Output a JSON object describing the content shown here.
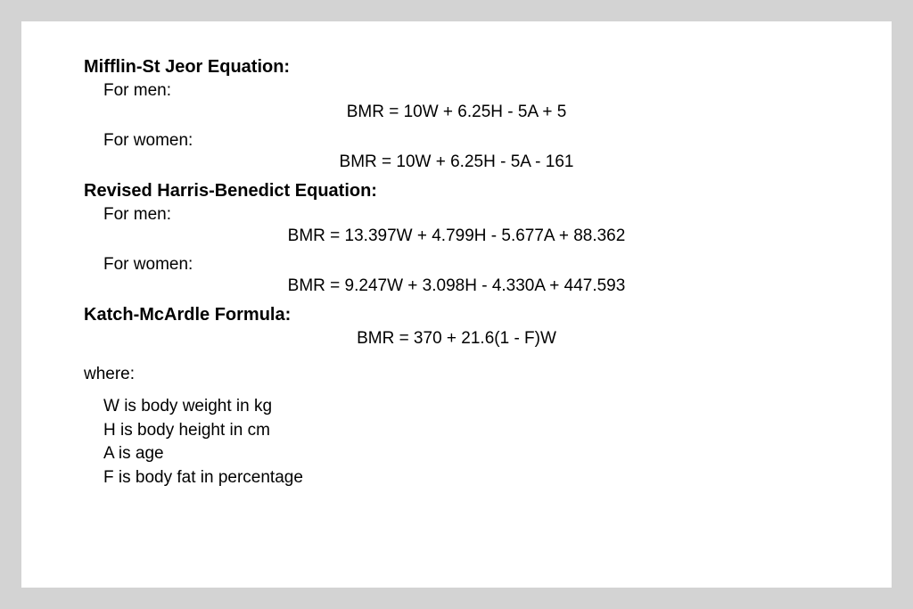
{
  "colors": {
    "page_background": "#d3d3d3",
    "content_background": "#ffffff",
    "text_color": "#000000"
  },
  "typography": {
    "font_family": "Arial, Helvetica, sans-serif",
    "title_fontsize": 20,
    "title_weight": "bold",
    "body_fontsize": 19
  },
  "sections": [
    {
      "title": "Mifflin-St Jeor Equation:",
      "entries": [
        {
          "label": "For men:",
          "formula": "BMR = 10W + 6.25H - 5A + 5"
        },
        {
          "label": "For women:",
          "formula": "BMR = 10W + 6.25H - 5A - 161"
        }
      ]
    },
    {
      "title": "Revised Harris-Benedict Equation:",
      "entries": [
        {
          "label": "For men:",
          "formula": "BMR = 13.397W + 4.799H - 5.677A + 88.362"
        },
        {
          "label": "For women:",
          "formula": "BMR = 9.247W + 3.098H - 4.330A + 447.593"
        }
      ]
    },
    {
      "title": "Katch-McArdle Formula:",
      "entries": [
        {
          "label": null,
          "formula": "BMR = 370 + 21.6(1 - F)W"
        }
      ]
    }
  ],
  "where_label": "where:",
  "definitions": [
    "W is body weight in kg",
    "H is body height in cm",
    "A is age",
    "F is body fat in percentage"
  ]
}
